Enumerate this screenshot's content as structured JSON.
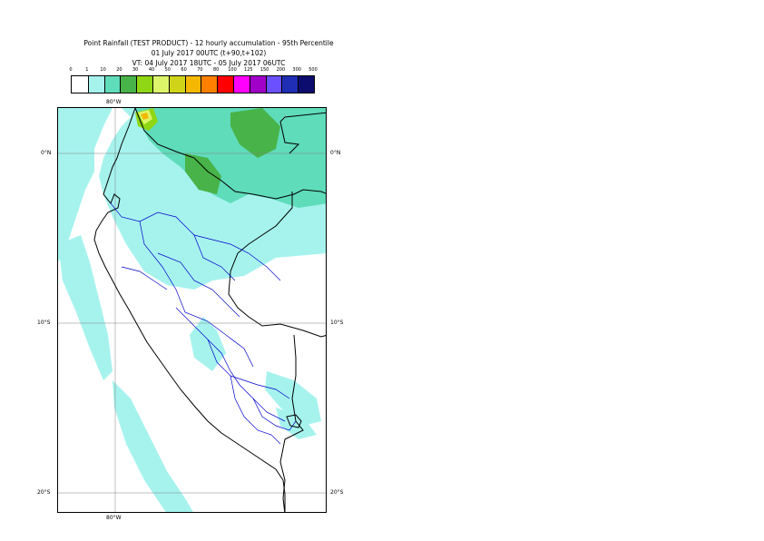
{
  "header": {
    "title_line1": "Point Rainfall (TEST PRODUCT) - 12 hourly accumulation - 95th Percentile",
    "title_line2": "01 July 2017 00UTC (t+90,t+102)",
    "title_line3": "VT: 04 July 2017 18UTC - 05 July 2017 06UTC"
  },
  "legend": {
    "ticks": [
      "0",
      "1",
      "10",
      "20",
      "30",
      "40",
      "50",
      "60",
      "70",
      "80",
      "100",
      "125",
      "150",
      "200",
      "300",
      "500"
    ],
    "colors": [
      "#ffffff",
      "#a6f3ee",
      "#5fdcba",
      "#48b348",
      "#8fd614",
      "#ddf56a",
      "#cfd419",
      "#f5b800",
      "#ff8000",
      "#ff0000",
      "#ff00ff",
      "#a100c8",
      "#6a50ff",
      "#1f2eb5",
      "#0c0c6e"
    ]
  },
  "map": {
    "lon_label_top": "80°W",
    "lon_label_bottom": "80°W",
    "lat_labels_left": [
      "0°N",
      "10°S",
      "20°S"
    ],
    "lat_labels_right": [
      "0°N",
      "10°S",
      "20°S"
    ],
    "colors": {
      "light_cyan": "#a6f3ee",
      "mid_green": "#5fdcba",
      "dark_green": "#48b348",
      "lime": "#8fd614",
      "yellow": "#ddf56a",
      "orange": "#f5b800",
      "coast": "#000000",
      "regions": "#0000cc",
      "grid": "#808080"
    }
  }
}
